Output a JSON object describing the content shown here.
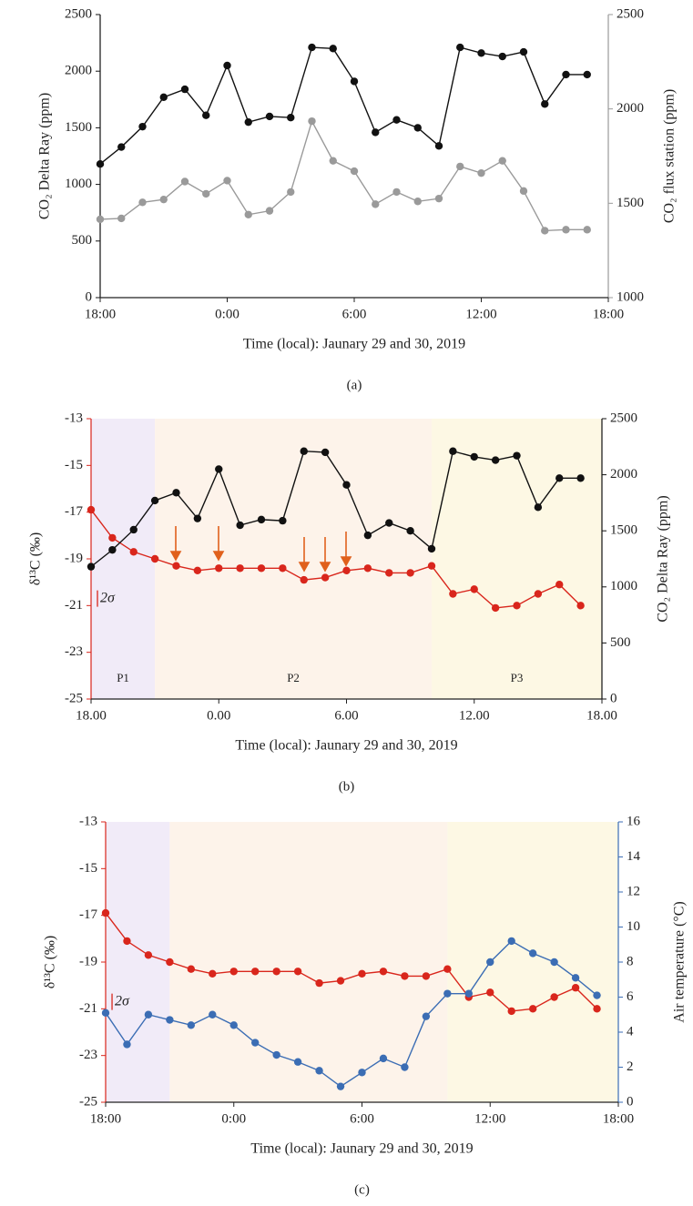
{
  "chart_data": [
    {
      "type": "line",
      "ylabel": "CO₂ Delta Ray (ppm)",
      "y2label": "CO₂ flux station (ppm)",
      "xlabel": "Time (local): Jaunary 29 and 30, 2019",
      "caption": "(a)",
      "x": [
        18,
        19,
        20,
        21,
        22,
        23,
        24,
        25,
        26,
        27,
        28,
        29,
        30,
        31,
        32,
        33,
        34,
        35,
        36,
        37,
        38,
        39,
        40,
        41
      ],
      "xlim": [
        18,
        42
      ],
      "xticks": [
        {
          "value": 18,
          "label": "18:00"
        },
        {
          "value": 24,
          "label": "0:00"
        },
        {
          "value": 30,
          "label": "6:00"
        },
        {
          "value": 36,
          "label": "12:00"
        },
        {
          "value": 42,
          "label": "18:00"
        }
      ],
      "ylim": [
        0,
        2500
      ],
      "yticks": [
        0,
        500,
        1000,
        1500,
        2000,
        2500
      ],
      "y2lim": [
        1000,
        2500
      ],
      "y2ticks": [
        1000,
        1500,
        2000,
        2500
      ],
      "series": [
        {
          "color": "#111111",
          "axis": "y",
          "values": [
            1180,
            1330,
            1510,
            1770,
            1840,
            1610,
            2050,
            1550,
            1600,
            1590,
            2210,
            2200,
            1910,
            1460,
            1570,
            1500,
            1340,
            2210,
            2160,
            2130,
            2170,
            1710,
            1970,
            1970
          ]
        },
        {
          "color": "#9a9a9a",
          "axis": "y2",
          "values": [
            1415,
            1420,
            1505,
            1520,
            1615,
            1550,
            1620,
            1440,
            1460,
            1560,
            1935,
            1725,
            1670,
            1495,
            1560,
            1510,
            1525,
            1695,
            1660,
            1725,
            1565,
            1355,
            1360,
            1360
          ]
        }
      ]
    },
    {
      "type": "line",
      "ylabel": "δ¹³C (‰)",
      "y2label": "CO₂ Delta Ray (ppm)",
      "xlabel": "Time (local): Jaunary 29 and 30, 2019",
      "caption": "(b)",
      "x": [
        18,
        19,
        20,
        21,
        22,
        23,
        24,
        25,
        26,
        27,
        28,
        29,
        30,
        31,
        32,
        33,
        34,
        35,
        36,
        37,
        38,
        39,
        40,
        41
      ],
      "xlim": [
        18,
        42
      ],
      "xticks": [
        {
          "value": 18,
          "label": "18.00"
        },
        {
          "value": 24,
          "label": "0.00"
        },
        {
          "value": 30,
          "label": "6.00"
        },
        {
          "value": 36,
          "label": "12.00"
        },
        {
          "value": 42,
          "label": "18.00"
        }
      ],
      "ylim": [
        -25,
        -13
      ],
      "yticks": [
        -25,
        -23,
        -21,
        -19,
        -17,
        -15,
        -13
      ],
      "y2lim": [
        0,
        2500
      ],
      "y2ticks": [
        0,
        500,
        1000,
        1500,
        2000,
        2500
      ],
      "periods": [
        {
          "label": "P1",
          "start": 18,
          "end": 21,
          "color": "#f1ebf8",
          "text_color": "#7b3fb2"
        },
        {
          "label": "P2",
          "start": 21,
          "end": 34,
          "color": "#fdf3ea",
          "text_color": "#e07a36"
        },
        {
          "label": "P3",
          "start": 34,
          "end": 42,
          "color": "#fdf8e4",
          "text_color": "#f2b400"
        }
      ],
      "annotation": {
        "text": "2σ",
        "x": 18.3,
        "y": -20.7,
        "error": 0.35
      },
      "series": [
        {
          "color": "#d9261c",
          "axis": "y",
          "values": [
            -16.9,
            -18.1,
            -18.7,
            -19.0,
            -19.3,
            -19.5,
            -19.4,
            -19.4,
            -19.4,
            -19.4,
            -19.9,
            -19.8,
            -19.5,
            -19.4,
            -19.6,
            -19.6,
            -19.3,
            -20.5,
            -20.3,
            -21.1,
            -21.0,
            -20.5,
            -20.1,
            -21.0
          ]
        },
        {
          "color": "#111111",
          "axis": "y2",
          "values": [
            1180,
            1330,
            1510,
            1770,
            1840,
            1610,
            2050,
            1550,
            1600,
            1590,
            2210,
            2200,
            1910,
            1460,
            1570,
            1500,
            1340,
            2210,
            2160,
            2130,
            2170,
            1710,
            1970,
            1970
          ]
        }
      ]
    },
    {
      "type": "line",
      "ylabel": "δ¹³C (‰)",
      "y2label": "Air temperature (°C)",
      "xlabel": "Time (local): Jaunary 29 and 30, 2019",
      "caption": "(c)",
      "x": [
        18,
        19,
        20,
        21,
        22,
        23,
        24,
        25,
        26,
        27,
        28,
        29,
        30,
        31,
        32,
        33,
        34,
        35,
        36,
        37,
        38,
        39,
        40,
        41
      ],
      "xlim": [
        18,
        42
      ],
      "xticks": [
        {
          "value": 18,
          "label": "18:00"
        },
        {
          "value": 24,
          "label": "0:00"
        },
        {
          "value": 30,
          "label": "6:00"
        },
        {
          "value": 36,
          "label": "12:00"
        },
        {
          "value": 42,
          "label": "18:00"
        }
      ],
      "ylim": [
        -25,
        -13
      ],
      "yticks": [
        -25,
        -23,
        -21,
        -19,
        -17,
        -15,
        -13
      ],
      "y2lim": [
        0,
        16
      ],
      "y2ticks": [
        0,
        2,
        4,
        6,
        8,
        10,
        12,
        14,
        16
      ],
      "periods": [
        {
          "start": 18,
          "end": 21,
          "color": "#f1ebf8"
        },
        {
          "start": 21,
          "end": 34,
          "color": "#fdf3ea"
        },
        {
          "start": 34,
          "end": 42,
          "color": "#fdf8e4"
        }
      ],
      "annotation": {
        "text": "2σ",
        "x": 18.3,
        "y": -20.7,
        "error": 0.35
      },
      "series": [
        {
          "color": "#d9261c",
          "axis": "y",
          "values": [
            -16.9,
            -18.1,
            -18.7,
            -19.0,
            -19.3,
            -19.5,
            -19.4,
            -19.4,
            -19.4,
            -19.4,
            -19.9,
            -19.8,
            -19.5,
            -19.4,
            -19.6,
            -19.6,
            -19.3,
            -20.5,
            -20.3,
            -21.1,
            -21.0,
            -20.5,
            -20.1,
            -21.0
          ]
        },
        {
          "color": "#3b6db4",
          "axis": "y2",
          "values": [
            5.1,
            3.3,
            5.0,
            4.7,
            4.4,
            5.0,
            4.4,
            3.4,
            2.7,
            2.3,
            1.8,
            0.9,
            1.7,
            2.5,
            2.0,
            4.9,
            6.2,
            6.2,
            8.0,
            9.2,
            8.5,
            8.0,
            7.1,
            6.1
          ]
        }
      ]
    }
  ]
}
